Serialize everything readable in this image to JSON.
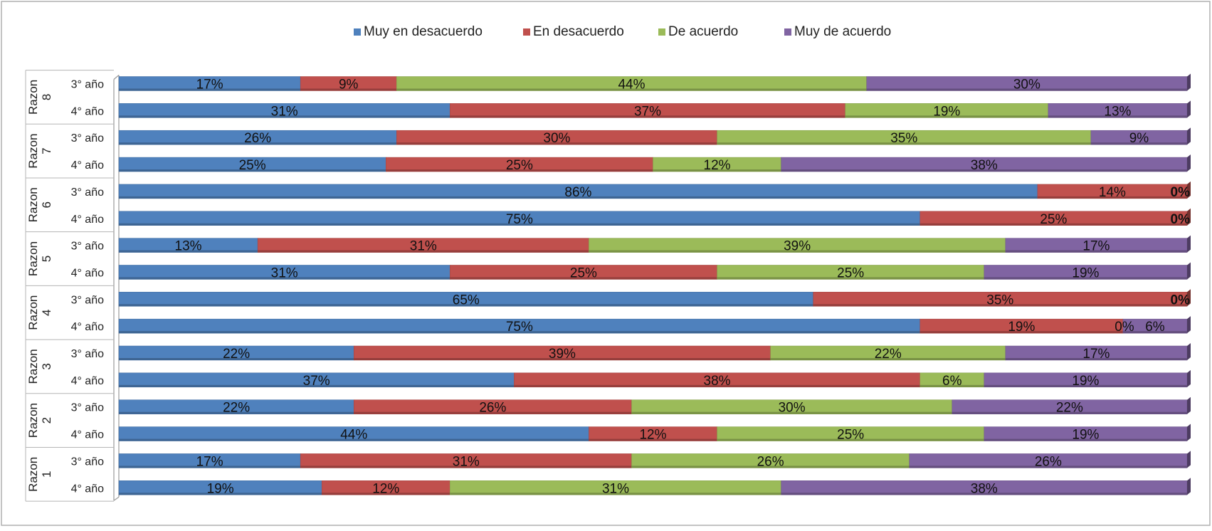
{
  "chart_data": {
    "type": "bar",
    "stacked": true,
    "orientation": "horizontal",
    "percent_stacked": true,
    "legend_position": "top",
    "title": "",
    "xlabel": "",
    "ylabel": "",
    "xlim": [
      0,
      100
    ],
    "grid": false,
    "series": [
      {
        "name": "Muy en desacuerdo",
        "color": "#4F81BD"
      },
      {
        "name": "En desacuerdo",
        "color": "#C0504D"
      },
      {
        "name": "De acuerdo",
        "color": "#9BBB59"
      },
      {
        "name": "Muy de acuerdo",
        "color": "#8064A2"
      }
    ],
    "groups": [
      {
        "label": "Razon 8",
        "rows": [
          {
            "label": "3° año",
            "values": [
              17,
              9,
              44,
              30
            ],
            "value_labels": [
              "17%",
              "9%",
              "44%",
              "30%"
            ]
          },
          {
            "label": "4° año",
            "values": [
              31,
              37,
              19,
              13
            ],
            "value_labels": [
              "31%",
              "37%",
              "19%",
              "13%"
            ]
          }
        ]
      },
      {
        "label": "Razon 7",
        "rows": [
          {
            "label": "3° año",
            "values": [
              26,
              30,
              35,
              9
            ],
            "value_labels": [
              "26%",
              "30%",
              "35%",
              "9%"
            ]
          },
          {
            "label": "4° año",
            "values": [
              25,
              25,
              12,
              38
            ],
            "value_labels": [
              "25%",
              "25%",
              "12%",
              "38%"
            ]
          }
        ]
      },
      {
        "label": "Razon 6",
        "rows": [
          {
            "label": "3° año",
            "values": [
              86,
              14,
              0,
              0
            ],
            "value_labels": [
              "86%",
              "14%",
              "0%",
              ""
            ]
          },
          {
            "label": "4° año",
            "values": [
              75,
              25,
              0,
              0
            ],
            "value_labels": [
              "75%",
              "25%",
              "0%",
              ""
            ]
          }
        ]
      },
      {
        "label": "Razon 5",
        "rows": [
          {
            "label": "3° año",
            "values": [
              13,
              31,
              39,
              17
            ],
            "value_labels": [
              "13%",
              "31%",
              "39%",
              "17%"
            ]
          },
          {
            "label": "4° año",
            "values": [
              31,
              25,
              25,
              19
            ],
            "value_labels": [
              "31%",
              "25%",
              "25%",
              "19%"
            ]
          }
        ]
      },
      {
        "label": "Razon 4",
        "rows": [
          {
            "label": "3° año",
            "values": [
              65,
              35,
              0,
              0
            ],
            "value_labels": [
              "65%",
              "35%",
              "0%",
              ""
            ]
          },
          {
            "label": "4° año",
            "values": [
              75,
              19,
              0,
              6
            ],
            "value_labels": [
              "75%",
              "19%",
              "0%",
              "6%"
            ]
          }
        ]
      },
      {
        "label": "Razon 3",
        "rows": [
          {
            "label": "3° año",
            "values": [
              22,
              39,
              22,
              17
            ],
            "value_labels": [
              "22%",
              "39%",
              "22%",
              "17%"
            ]
          },
          {
            "label": "4° año",
            "values": [
              37,
              38,
              6,
              19
            ],
            "value_labels": [
              "37%",
              "38%",
              "6%",
              "19%"
            ]
          }
        ]
      },
      {
        "label": "Razon 2",
        "rows": [
          {
            "label": "3° año",
            "values": [
              22,
              26,
              30,
              22
            ],
            "value_labels": [
              "22%",
              "26%",
              "30%",
              "22%"
            ]
          },
          {
            "label": "4° año",
            "values": [
              44,
              12,
              25,
              19
            ],
            "value_labels": [
              "44%",
              "12%",
              "25%",
              "19%"
            ]
          }
        ]
      },
      {
        "label": "Razon 1",
        "rows": [
          {
            "label": "3° año",
            "values": [
              17,
              31,
              26,
              26
            ],
            "value_labels": [
              "17%",
              "31%",
              "26%",
              "26%"
            ]
          },
          {
            "label": "4° año",
            "values": [
              19,
              12,
              31,
              38
            ],
            "value_labels": [
              "19%",
              "12%",
              "31%",
              "38%"
            ]
          }
        ]
      }
    ]
  }
}
